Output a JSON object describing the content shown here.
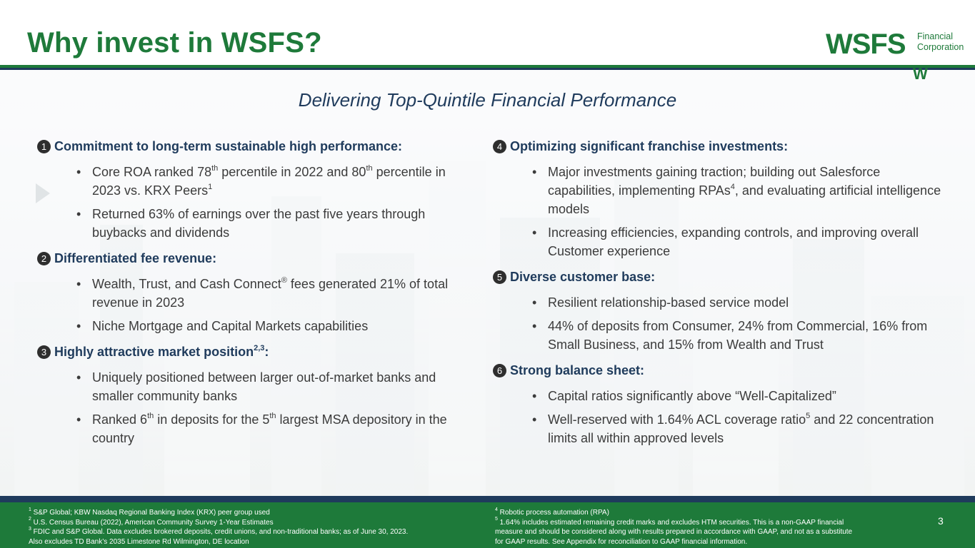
{
  "title": "Why invest in WSFS?",
  "logo": {
    "word": "WSFS",
    "sub_line1": "Financial",
    "sub_line2": "Corporation",
    "mark": "W"
  },
  "subtitle": "Delivering Top-Quintile Financial Performance",
  "sections": [
    {
      "num": "1",
      "heading": "Commitment to long-term sustainable high performance:",
      "bullets": [
        {
          "pre": "Core ROA ranked 78",
          "sup1": "th",
          "mid": " percentile in 2022 and 80",
          "sup2": "th",
          "post": " percentile in 2023 vs. KRX Peers",
          "sup3": "1"
        },
        {
          "text": "Returned 63% of earnings over the past five years through buybacks and dividends"
        }
      ]
    },
    {
      "num": "2",
      "heading": "Differentiated fee revenue:",
      "bullets": [
        {
          "pre": "Wealth, Trust, and Cash Connect",
          "sup1": "®",
          "post": " fees generated 21% of total revenue in 2023"
        },
        {
          "text": "Niche Mortgage and Capital Markets capabilities"
        }
      ]
    },
    {
      "num": "3",
      "heading": "Highly attractive market position",
      "heading_sup": "2,3",
      "heading_post": ":",
      "bullets": [
        {
          "text": "Uniquely positioned between larger out-of-market banks and smaller community banks"
        },
        {
          "pre": "Ranked 6",
          "sup1": "th",
          "mid": " in deposits for the 5",
          "sup2": "th",
          "post": " largest MSA depository in the country"
        }
      ]
    },
    {
      "num": "4",
      "heading": "Optimizing significant franchise investments:",
      "bullets": [
        {
          "pre": "Major investments gaining traction; building out Salesforce capabilities, implementing RPAs",
          "sup1": "4",
          "post": ", and evaluating artificial intelligence models"
        },
        {
          "text": "Increasing efficiencies, expanding controls, and improving overall Customer experience"
        }
      ]
    },
    {
      "num": "5",
      "heading": "Diverse customer base:",
      "bullets": [
        {
          "text": "Resilient relationship-based service model"
        },
        {
          "text": "44% of deposits from Consumer, 24% from Commercial, 16% from Small Business, and 15% from Wealth and Trust"
        }
      ]
    },
    {
      "num": "6",
      "heading": "Strong balance sheet:",
      "bullets": [
        {
          "text": "Capital ratios significantly above “Well-Capitalized”"
        },
        {
          "pre": "Well-reserved with 1.64% ACL coverage ratio",
          "sup1": "5",
          "post": " and 22 concentration limits all within approved levels"
        }
      ]
    }
  ],
  "footnotes_left": [
    {
      "sup": "1",
      "text": " S&P Global; KBW Nasdaq Regional Banking Index (KRX) peer group used"
    },
    {
      "sup": "2",
      "text": " U.S. Census Bureau (2022), American Community Survey 1-Year Estimates"
    },
    {
      "sup": "3",
      "text": " FDIC and S&P Global. Data excludes brokered deposits, credit unions, and non-traditional banks; as of June 30, 2023."
    },
    {
      "sup": "",
      "text": "Also excludes TD Bank’s 2035 Limestone Rd Wilmington, DE location"
    }
  ],
  "footnotes_right": [
    {
      "sup": "4",
      "text": " Robotic process automation (RPA)"
    },
    {
      "sup": "5",
      "text": " 1.64% includes estimated remaining credit marks and excludes HTM securities. This is a non-GAAP financial"
    },
    {
      "sup": "",
      "text": "measure and should be considered along with results prepared in accordance with GAAP, and not as a substitute"
    },
    {
      "sup": "",
      "text": "for GAAP results.  See Appendix for reconciliation to GAAP financial information."
    }
  ],
  "page_number": "3",
  "colors": {
    "green": "#1e7a3a",
    "navy": "#1f3b5c",
    "text": "#3b3b3b"
  }
}
